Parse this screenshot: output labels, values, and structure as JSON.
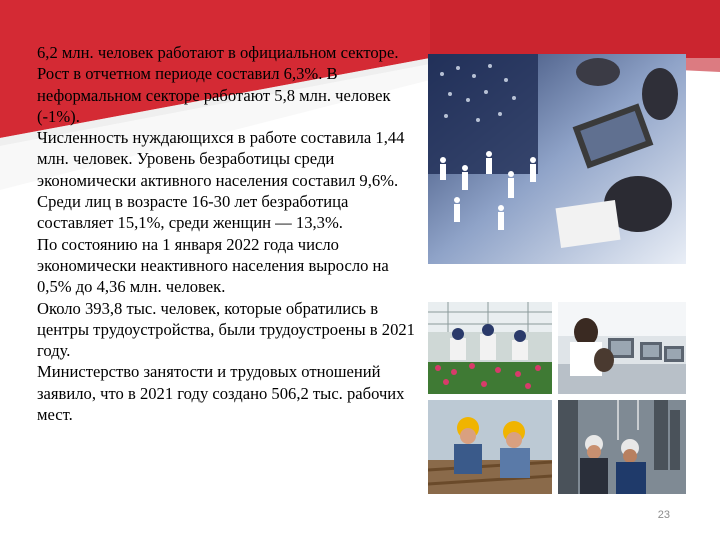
{
  "colors": {
    "accent_red": "#d42a34",
    "accent_dark_red": "#b71e28",
    "text": "#000000",
    "page_number": "#8c8c8c"
  },
  "paragraphs": [
    "6,2 млн. человек работают в официальном секторе. Рост в отчетном периоде составил 6,3%. В неформальном секторе работают 5,8 млн. человек (-1%).",
    "Численность нуждающихся в работе составила 1,44 млн. человек. Уровень безработицы среди экономически активного населения составил 9,6%. Среди лиц в возрасте 16-30 лет безработица составляет 15,1%, среди женщин — 13,3%.",
    "По состоянию на 1 января 2022 года число экономически неактивного населения выросло на 0,5% до 4,36 млн. человек.",
    "Около 393,8 тыс. человек, которые обратились в центры трудоустройства, были трудоустроены в 2021 году.",
    "Министерство занятости и трудовых отношений заявило, что в 2021 году создано 506,2 тыс. рабочих мест."
  ],
  "images": [
    {
      "name": "business-people-network-photo",
      "alt": "business meeting with laptops"
    },
    {
      "name": "greenhouse-workers-photo",
      "alt": "workers in greenhouse"
    },
    {
      "name": "office-computers-photo",
      "alt": "people at computers"
    },
    {
      "name": "construction-workers-photo",
      "alt": "construction workers in helmets"
    },
    {
      "name": "industrial-workers-photo",
      "alt": "industrial workers"
    }
  ],
  "page_number": "23"
}
